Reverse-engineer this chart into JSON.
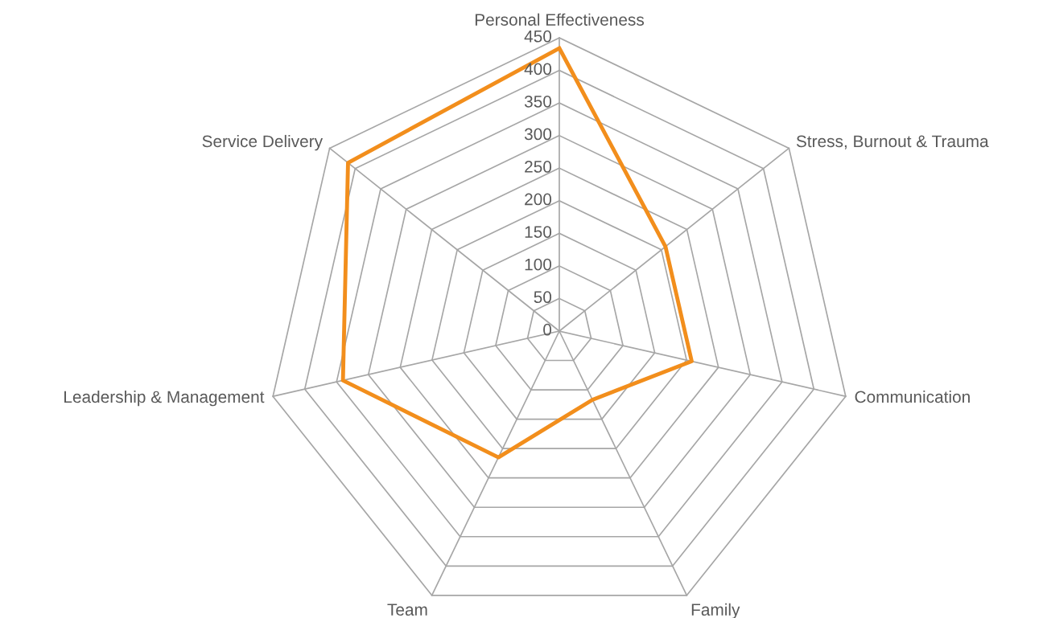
{
  "chart_data": {
    "type": "radar",
    "categories": [
      "Personal Effectiveness",
      "Stress, Burnout & Trauma",
      "Communication",
      "Family",
      "Team",
      "Leadership & Management",
      "Service Delivery"
    ],
    "series": [
      {
        "color": "#f28e1c",
        "values": [
          434,
          208,
          208,
          117,
          215,
          340,
          414
        ]
      }
    ],
    "ylim": [
      0,
      450
    ],
    "yticks": [
      0,
      50,
      100,
      150,
      200,
      250,
      300,
      350,
      400,
      450
    ],
    "grid": true,
    "marker": "none",
    "line_style": "solid"
  }
}
